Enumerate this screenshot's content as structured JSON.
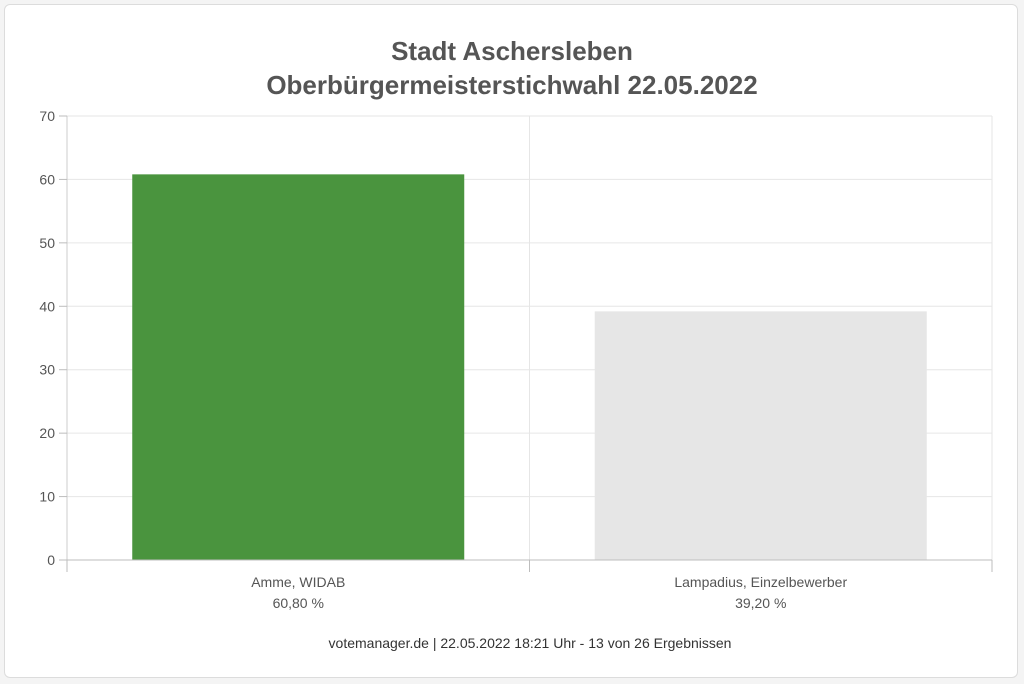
{
  "chart_data": {
    "type": "bar",
    "title": [
      "Stadt Aschersleben",
      "Oberbürgermeisterstichwahl 22.05.2022"
    ],
    "categories": [
      "Amme, WIDAB",
      "Lampadius, Einzelbewerber"
    ],
    "category_sublabels": [
      "60,80 %",
      "39,20 %"
    ],
    "values": [
      60.8,
      39.2
    ],
    "bar_colors": [
      "#4a943e",
      "#e6e6e6"
    ],
    "ylim": [
      0,
      70
    ],
    "yticks": [
      0,
      10,
      20,
      30,
      40,
      50,
      60,
      70
    ],
    "grid": true,
    "xlabel": "",
    "ylabel": ""
  },
  "footer": "votemanager.de | 22.05.2022 18:21 Uhr - 13 von 26 Ergebnissen"
}
